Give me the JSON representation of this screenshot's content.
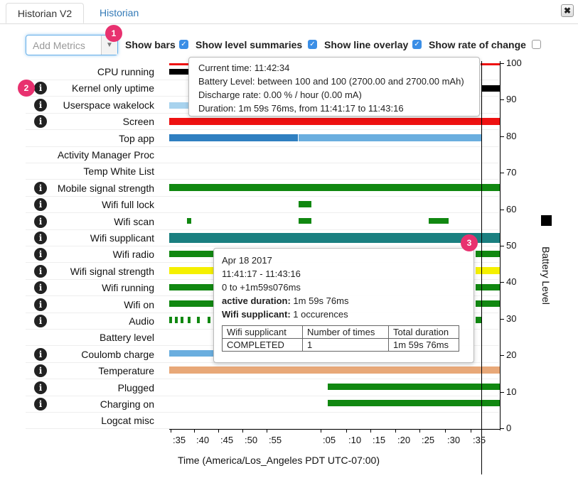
{
  "tabs": [
    {
      "label": "Historian V2",
      "active": true
    },
    {
      "label": "Historian",
      "active": false
    }
  ],
  "close_label": "✖",
  "toolbar": {
    "add_metrics_placeholder": "Add Metrics",
    "badges": [
      "1",
      "2",
      "3"
    ],
    "options": [
      {
        "label": "Show bars",
        "checked": true
      },
      {
        "label": "Show level summaries",
        "checked": true
      },
      {
        "label": "Show line overlay",
        "checked": true
      },
      {
        "label": "Show rate of change",
        "checked": false
      }
    ]
  },
  "rows": [
    {
      "label": "CPU running",
      "info": false
    },
    {
      "label": "Kernel only uptime",
      "info": true
    },
    {
      "label": "Userspace wakelock",
      "info": true
    },
    {
      "label": "Screen",
      "info": true
    },
    {
      "label": "Top app",
      "info": false
    },
    {
      "label": "Activity Manager Proc",
      "info": false
    },
    {
      "label": "Temp White List",
      "info": false
    },
    {
      "label": "Mobile signal strength",
      "info": true
    },
    {
      "label": "Wifi full lock",
      "info": true
    },
    {
      "label": "Wifi scan",
      "info": true
    },
    {
      "label": "Wifi supplicant",
      "info": true
    },
    {
      "label": "Wifi radio",
      "info": true
    },
    {
      "label": "Wifi signal strength",
      "info": true
    },
    {
      "label": "Wifi running",
      "info": true
    },
    {
      "label": "Wifi on",
      "info": true
    },
    {
      "label": "Audio",
      "info": true
    },
    {
      "label": "Battery level",
      "info": false
    },
    {
      "label": "Coulomb charge",
      "info": true
    },
    {
      "label": "Temperature",
      "info": true
    },
    {
      "label": "Plugged",
      "info": true
    },
    {
      "label": "Charging on",
      "info": true
    },
    {
      "label": "Logcat misc",
      "info": false
    }
  ],
  "x_ticks": [
    ":35",
    ":40",
    ":45",
    ":50",
    ":55",
    ":05",
    ":10",
    ":15",
    ":20",
    ":25",
    ":30",
    ":35"
  ],
  "x_axis_label": "Time (America/Los_Angeles PDT UTC-07:00)",
  "y_ticks": [
    "100",
    "90",
    "80",
    "70",
    "60",
    "50",
    "40",
    "30",
    "20",
    "10",
    "0"
  ],
  "y_axis_label": "Battery Level",
  "battery_tooltip": {
    "lines": [
      "Current time: 11:42:34",
      "Battery Level: between 100 and 100 (2700.00 and 2700.00 mAh)",
      "Discharge rate: 0.00 % / hour (0.00 mA)",
      "Duration: 1m 59s 76ms, from 11:41:17 to 11:43:16"
    ]
  },
  "event_tooltip": {
    "date": "Apr 18 2017",
    "time_range": "11:41:17 - 11:43:16",
    "offset": "0 to +1m59s076ms",
    "active_label": "active duration:",
    "active_value": "1m 59s 76ms",
    "count_label": "Wifi supplicant:",
    "count_value": "1 occurences",
    "table_headers": [
      "Wifi supplicant",
      "Number of times",
      "Total duration"
    ],
    "table_row": [
      "COMPLETED",
      "1",
      "1m 59s 76ms"
    ]
  },
  "colors": {
    "green": "#118811",
    "teal": "#1a7f80",
    "red": "#ee1111",
    "blue": "#2f7fc1",
    "lightblue": "#a8d3ee",
    "yellow": "#f5f000",
    "orange": "#e8a878",
    "black": "#000000",
    "accent": "#e8316f"
  }
}
